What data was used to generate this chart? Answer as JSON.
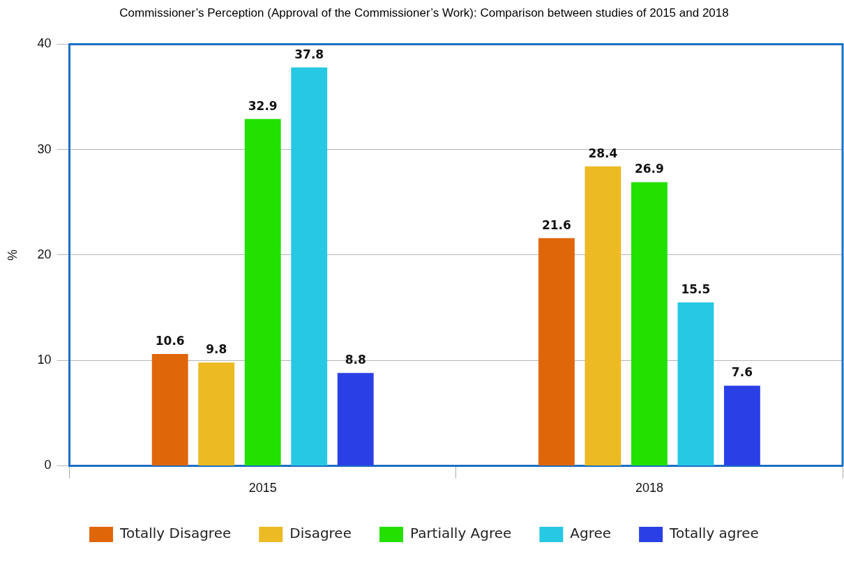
{
  "chart_data": {
    "type": "bar",
    "title": "Commissioner’s Perception (Approval of the Commissioner’s Work): Comparison between studies of 2015 and 2018",
    "ylabel": "%",
    "categories": [
      "2015",
      "2018"
    ],
    "series": [
      {
        "name": "Totally Disagree",
        "color": "#e0660a",
        "values": [
          10.6,
          21.6
        ]
      },
      {
        "name": "Disagree",
        "color": "#ecba22",
        "values": [
          9.8,
          28.4
        ]
      },
      {
        "name": "Partially Agree",
        "color": "#22e000",
        "values": [
          32.9,
          26.9
        ]
      },
      {
        "name": "Agree",
        "color": "#26c8e4",
        "values": [
          37.8,
          15.5
        ]
      },
      {
        "name": "Totally agree",
        "color": "#2a40e6",
        "values": [
          8.8,
          7.6
        ]
      }
    ],
    "ylim": [
      0,
      40
    ],
    "yticks": [
      0,
      10,
      20,
      30,
      40
    ],
    "grid": "y",
    "legend": "bottom",
    "data_labels": true
  }
}
